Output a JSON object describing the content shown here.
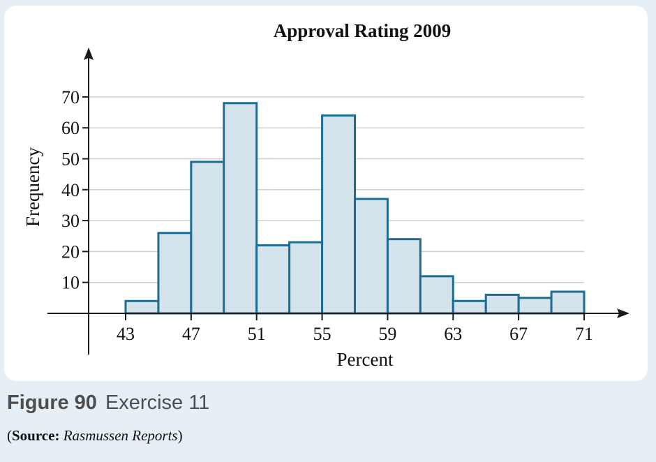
{
  "chart_data": {
    "type": "bar",
    "title": "Approval Rating 2009",
    "xlabel": "Percent",
    "ylabel": "Frequency",
    "bin_edges": [
      43,
      45,
      47,
      49,
      51,
      53,
      55,
      57,
      59,
      61,
      63,
      65,
      67,
      69,
      71
    ],
    "values": [
      4,
      26,
      49,
      68,
      22,
      23,
      64,
      37,
      24,
      12,
      4,
      6,
      5,
      7
    ],
    "x_ticks": [
      43,
      47,
      51,
      55,
      59,
      63,
      67,
      71
    ],
    "y_ticks": [
      10,
      20,
      30,
      40,
      50,
      60,
      70
    ],
    "xlim": [
      41,
      73
    ],
    "ylim": [
      0,
      80
    ],
    "grid": true,
    "colors": {
      "bar_fill": "#d5e3ec",
      "bar_edge": "#1d6d93",
      "grid": "#cfcfcf",
      "axis": "#1a1a1a"
    }
  },
  "caption": {
    "figure_label": "Figure 90",
    "exercise": "Exercise 11"
  },
  "source": {
    "open": "(",
    "label": "Source:",
    "name": "Rasmussen Reports",
    "close": ")"
  }
}
